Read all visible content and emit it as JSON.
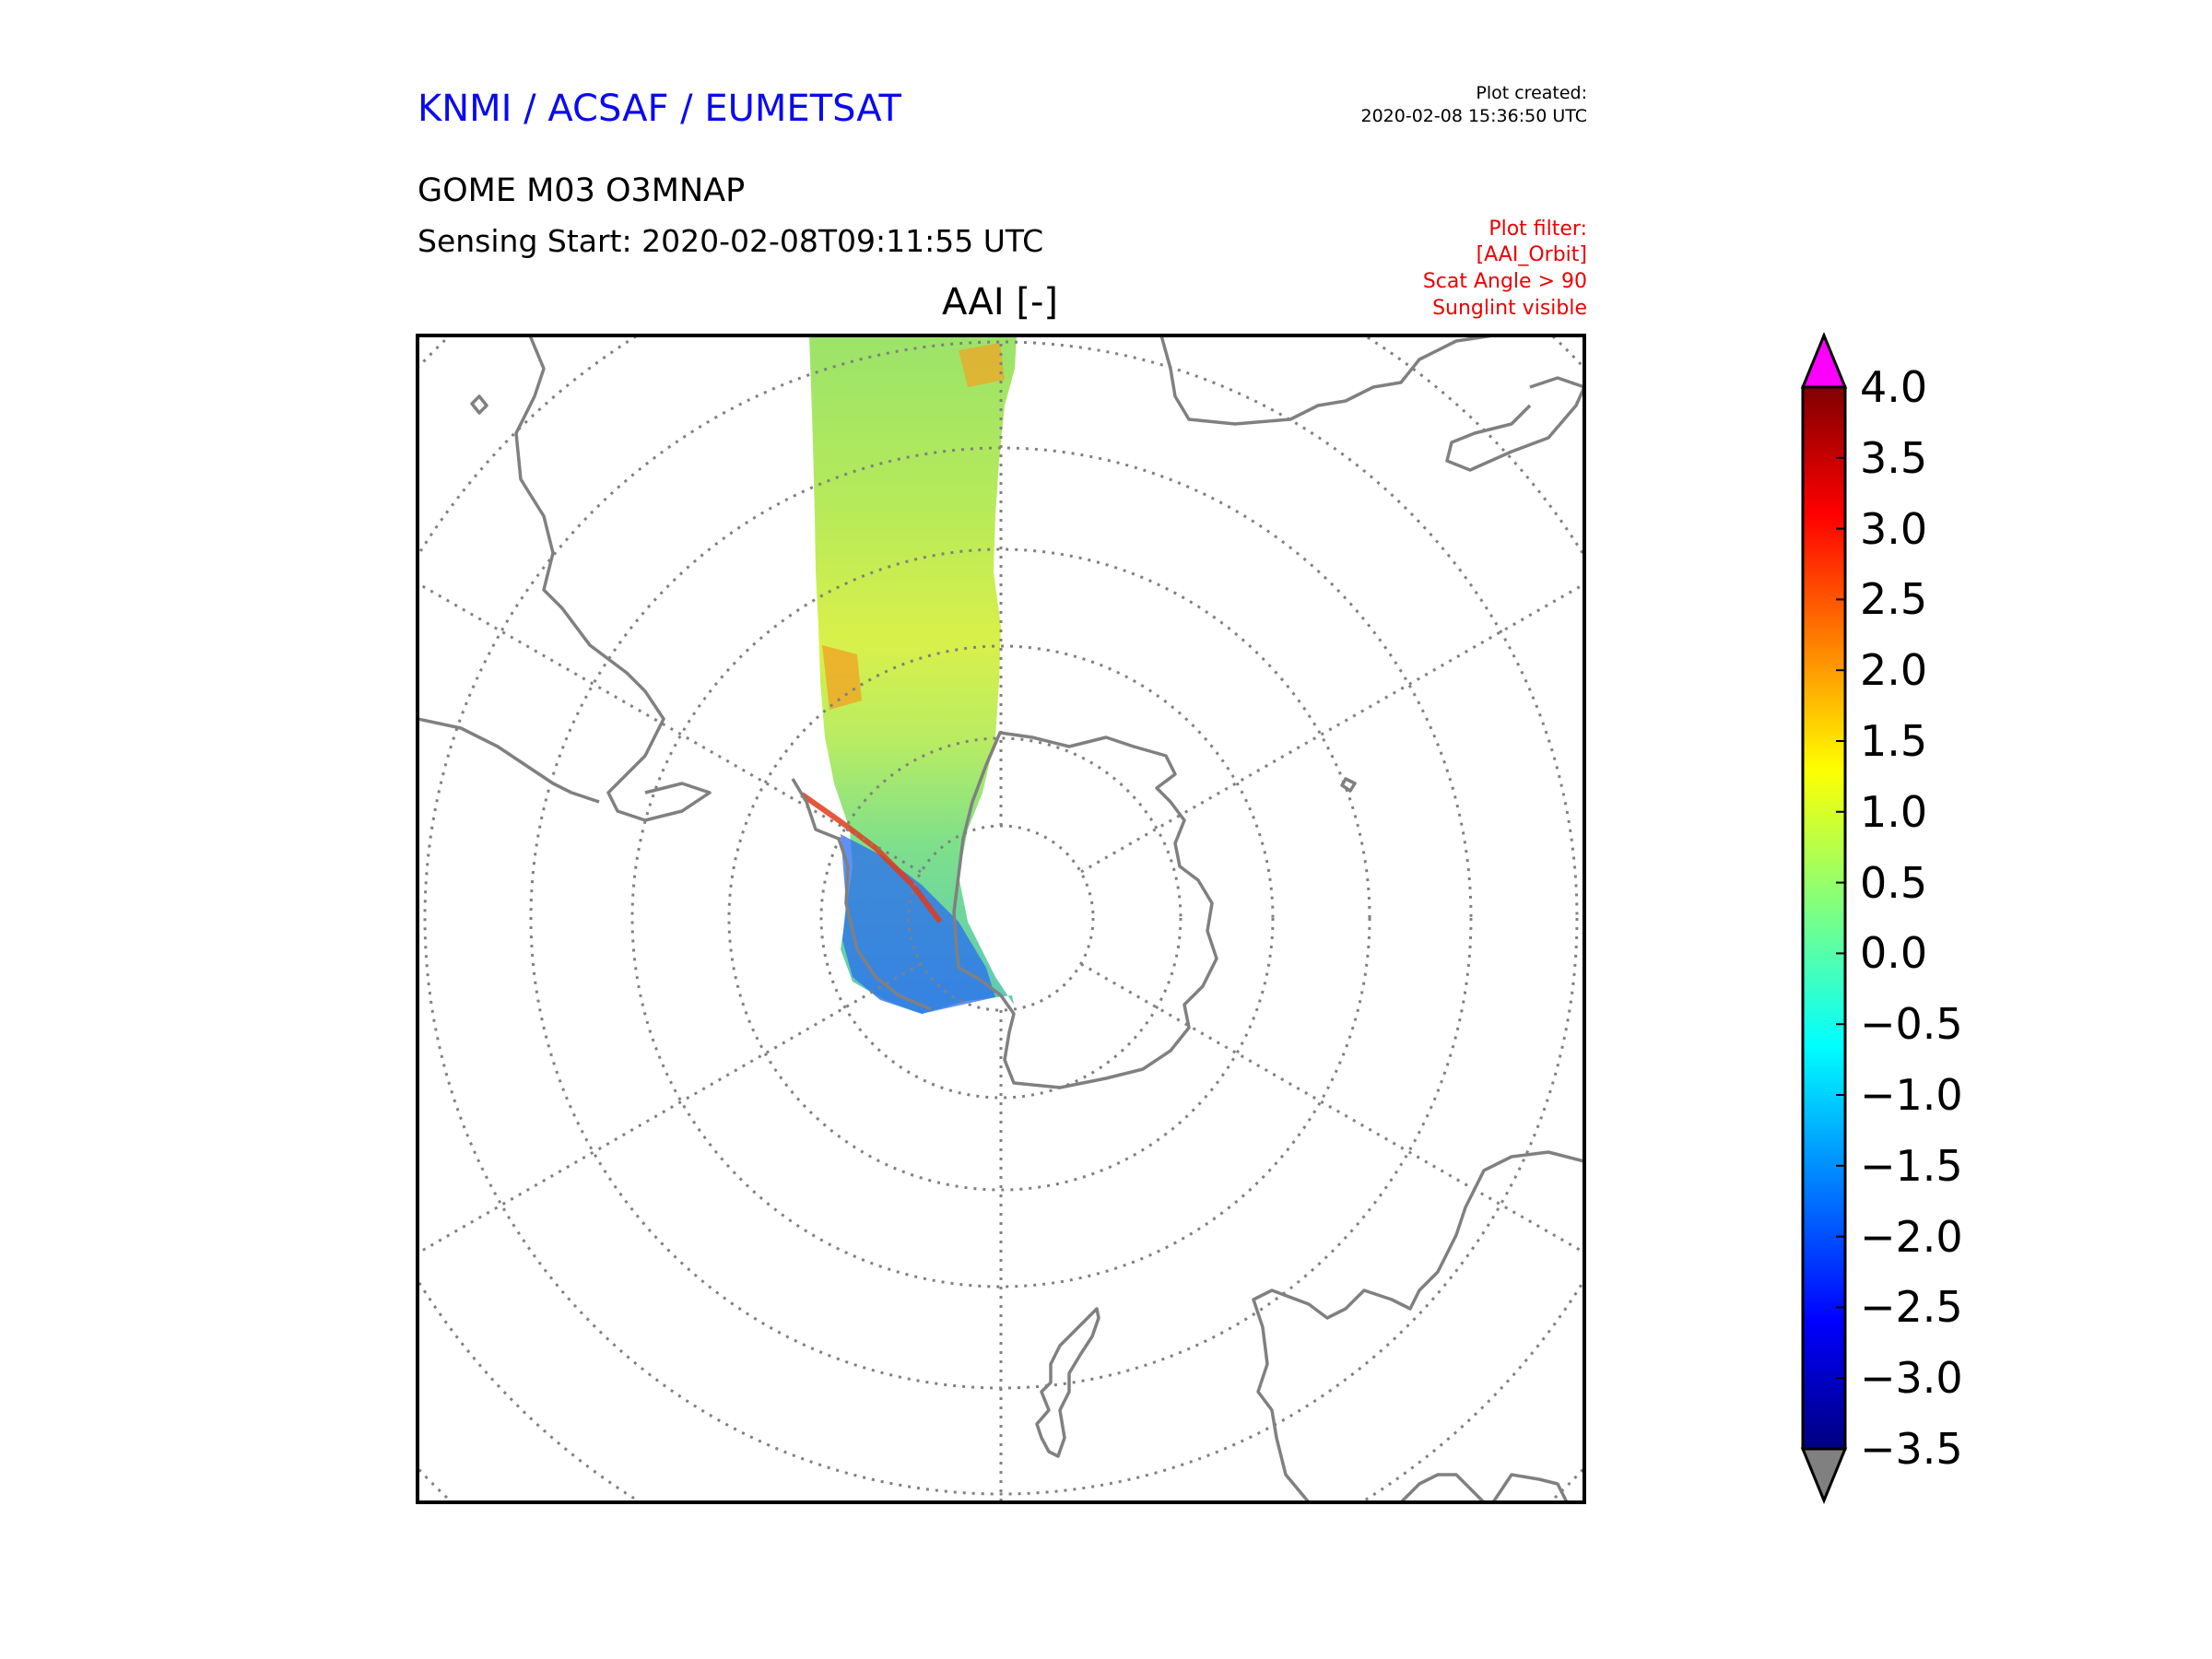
{
  "header": {
    "organisation": "KNMI / ACSAF / EUMETSAT",
    "plot_created_label": "Plot created:",
    "plot_created_value": "2020-02-08 15:36:50 UTC",
    "product": "GOME M03 O3MNAP",
    "sensing_start": "Sensing Start: 2020-02-08T09:11:55 UTC",
    "plot_filter": [
      "Plot filter:",
      "[AAI_Orbit]",
      "Scat Angle > 90",
      "Sunglint visible"
    ],
    "plot_title": "AAI [-]"
  },
  "colors": {
    "org_text": "#0a0aee",
    "filter_text": "#ee0000",
    "coastline": "#808080",
    "graticule": "#808080",
    "over_color": "#ff00ff",
    "under_color": "#808080"
  },
  "map": {
    "projection": "south-polar-stereographic",
    "variable": "AAI",
    "swath": "single orbit track crossing South America and the Antarctic Peninsula",
    "features": [
      "south-america-coast",
      "antarctica-coast",
      "africa-coast",
      "australia-coast",
      "new-zealand-coast"
    ]
  },
  "colorbar": {
    "min": -3.5,
    "max": 4.0,
    "extend": "both",
    "colormap": "jet",
    "tick_labels": [
      "4.0",
      "3.5",
      "3.0",
      "2.5",
      "2.0",
      "1.5",
      "1.0",
      "0.5",
      "0.0",
      "−0.5",
      "−1.0",
      "−1.5",
      "−2.0",
      "−2.5",
      "−3.0",
      "−3.5"
    ]
  }
}
